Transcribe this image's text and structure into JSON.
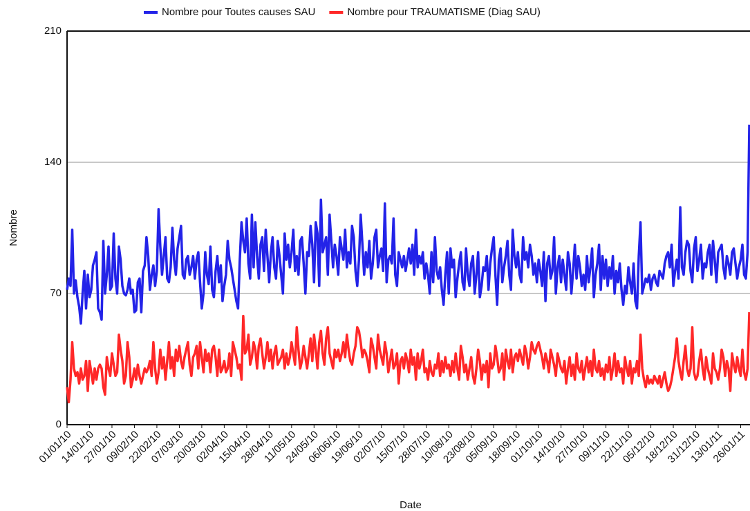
{
  "chart_data": {
    "type": "line",
    "xlabel": "Date",
    "ylabel": "Nombre",
    "legend": "top",
    "grid": true,
    "ylim": [
      0,
      210
    ],
    "yticks": [
      0,
      70,
      140,
      210
    ],
    "categories": [
      "01/01/10",
      null,
      null,
      null,
      null,
      null,
      null,
      null,
      null,
      null,
      null,
      null,
      null,
      "14/01/10",
      null,
      null,
      null,
      null,
      null,
      null,
      null,
      null,
      null,
      null,
      null,
      null,
      "27/01/10",
      null,
      null,
      null,
      null,
      null,
      null,
      null,
      null,
      null,
      null,
      null,
      null,
      "09/02/10",
      null,
      null,
      null,
      null,
      null,
      null,
      null,
      null,
      null,
      null,
      null,
      null,
      "22/02/10",
      null,
      null,
      null,
      null,
      null,
      null,
      null,
      null,
      null,
      null,
      null,
      null,
      "07/03/10",
      null,
      null,
      null,
      null,
      null,
      null,
      null,
      null,
      null,
      null,
      null,
      null,
      "20/03/10",
      null,
      null,
      null,
      null,
      null,
      null,
      null,
      null,
      null,
      null,
      null,
      null,
      "02/04/10",
      null,
      null,
      null,
      null,
      null,
      null,
      null,
      null,
      null,
      null,
      null,
      null,
      "15/04/10",
      null,
      null,
      null,
      null,
      null,
      null,
      null,
      null,
      null,
      null,
      null,
      null,
      "28/04/10",
      null,
      null,
      null,
      null,
      null,
      null,
      null,
      null,
      null,
      null,
      null,
      null,
      "11/05/10",
      null,
      null,
      null,
      null,
      null,
      null,
      null,
      null,
      null,
      null,
      null,
      null,
      "24/05/10",
      null,
      null,
      null,
      null,
      null,
      null,
      null,
      null,
      null,
      null,
      null,
      null,
      "06/06/10",
      null,
      null,
      null,
      null,
      null,
      null,
      null,
      null,
      null,
      null,
      null,
      null,
      "19/06/10",
      null,
      null,
      null,
      null,
      null,
      null,
      null,
      null,
      null,
      null,
      null,
      null,
      "02/07/10",
      null,
      null,
      null,
      null,
      null,
      null,
      null,
      null,
      null,
      null,
      null,
      null,
      "15/07/10",
      null,
      null,
      null,
      null,
      null,
      null,
      null,
      null,
      null,
      null,
      null,
      null,
      "28/07/10",
      null,
      null,
      null,
      null,
      null,
      null,
      null,
      null,
      null,
      null,
      null,
      null,
      "10/08/10",
      null,
      null,
      null,
      null,
      null,
      null,
      null,
      null,
      null,
      null,
      null,
      null,
      "23/08/10",
      null,
      null,
      null,
      null,
      null,
      null,
      null,
      null,
      null,
      null,
      null,
      null,
      "05/09/10",
      null,
      null,
      null,
      null,
      null,
      null,
      null,
      null,
      null,
      null,
      null,
      null,
      "18/09/10",
      null,
      null,
      null,
      null,
      null,
      null,
      null,
      null,
      null,
      null,
      null,
      null,
      "01/10/10",
      null,
      null,
      null,
      null,
      null,
      null,
      null,
      null,
      null,
      null,
      null,
      null,
      "14/10/10",
      null,
      null,
      null,
      null,
      null,
      null,
      null,
      null,
      null,
      null,
      null,
      null,
      "27/10/10",
      null,
      null,
      null,
      null,
      null,
      null,
      null,
      null,
      null,
      null,
      null,
      null,
      "09/11/10",
      null,
      null,
      null,
      null,
      null,
      null,
      null,
      null,
      null,
      null,
      null,
      null,
      "22/11/10",
      null,
      null,
      null,
      null,
      null,
      null,
      null,
      null,
      null,
      null,
      null,
      null,
      "05/12/10",
      null,
      null,
      null,
      null,
      null,
      null,
      null,
      null,
      null,
      null,
      null,
      null,
      "18/12/10",
      null,
      null,
      null,
      null,
      null,
      null,
      null,
      null,
      null,
      null,
      null,
      null,
      "31/12/10",
      null,
      null,
      null,
      null,
      null,
      null,
      null,
      null,
      null,
      null,
      null,
      null,
      "13/01/11",
      null,
      null,
      null,
      null,
      null,
      null,
      null,
      null,
      null,
      null,
      null,
      null,
      "26/01/11",
      null,
      null,
      null,
      null,
      null
    ],
    "series": [
      {
        "name": "Nombre pour Toutes causes SAU",
        "color": "#2323e8",
        "values": [
          72,
          78,
          74,
          104,
          70,
          77,
          68,
          63,
          54,
          70,
          82,
          62,
          80,
          68,
          72,
          85,
          88,
          92,
          62,
          60,
          56,
          98,
          70,
          80,
          95,
          72,
          74,
          102,
          78,
          70,
          95,
          88,
          74,
          70,
          69,
          72,
          78,
          70,
          72,
          60,
          61,
          76,
          78,
          60,
          82,
          85,
          100,
          90,
          72,
          80,
          85,
          74,
          82,
          115,
          95,
          80,
          90,
          100,
          78,
          76,
          84,
          105,
          88,
          80,
          94,
          100,
          106,
          80,
          78,
          88,
          90,
          80,
          84,
          90,
          78,
          88,
          92,
          76,
          62,
          70,
          92,
          80,
          75,
          95,
          72,
          68,
          82,
          90,
          76,
          85,
          66,
          74,
          80,
          98,
          88,
          84,
          78,
          72,
          66,
          62,
          88,
          108,
          98,
          92,
          110,
          86,
          78,
          112,
          84,
          108,
          90,
          78,
          96,
          100,
          82,
          104,
          90,
          76,
          92,
          100,
          84,
          78,
          98,
          90,
          80,
          70,
          102,
          88,
          96,
          84,
          92,
          104,
          82,
          90,
          80,
          98,
          100,
          86,
          70,
          92,
          90,
          106,
          96,
          76,
          108,
          102,
          74,
          120,
          92,
          96,
          100,
          80,
          112,
          98,
          84,
          96,
          90,
          80,
          100,
          94,
          88,
          104,
          84,
          92,
          86,
          106,
          100,
          82,
          74,
          88,
          112,
          96,
          80,
          92,
          84,
          98,
          78,
          86,
          100,
          104,
          84,
          90,
          94,
          82,
          118,
          76,
          88,
          90,
          86,
          110,
          80,
          74,
          92,
          88,
          84,
          90,
          82,
          88,
          94,
          86,
          96,
          80,
          104,
          84,
          90,
          86,
          92,
          78,
          86,
          80,
          70,
          92,
          76,
          100,
          82,
          78,
          84,
          72,
          64,
          80,
          92,
          70,
          94,
          84,
          88,
          68,
          78,
          86,
          92,
          76,
          72,
          94,
          80,
          74,
          86,
          90,
          70,
          80,
          92,
          68,
          74,
          84,
          82,
          90,
          72,
          86,
          94,
          100,
          80,
          64,
          88,
          94,
          76,
          84,
          90,
          98,
          80,
          72,
          104,
          90,
          84,
          92,
          80,
          76,
          100,
          88,
          92,
          84,
          96,
          90,
          80,
          86,
          76,
          88,
          82,
          74,
          92,
          66,
          86,
          90,
          78,
          82,
          100,
          70,
          84,
          90,
          76,
          88,
          80,
          72,
          92,
          86,
          70,
          82,
          96,
          78,
          90,
          84,
          74,
          80,
          72,
          90,
          76,
          84,
          94,
          68,
          80,
          86,
          96,
          72,
          90,
          78,
          88,
          74,
          84,
          78,
          90,
          70,
          82,
          76,
          86,
          72,
          64,
          74,
          70,
          84,
          76,
          70,
          86,
          66,
          62,
          90,
          108,
          70,
          74,
          78,
          76,
          80,
          72,
          78,
          80,
          76,
          74,
          82,
          80,
          78,
          86,
          90,
          92,
          84,
          96,
          74,
          82,
          88,
          78,
          116,
          84,
          80,
          92,
          98,
          96,
          82,
          76,
          94,
          100,
          82,
          88,
          96,
          78,
          86,
          84,
          92,
          96,
          80,
          98,
          88,
          76,
          92,
          94,
          96,
          84,
          78,
          90,
          86,
          80,
          92,
          94,
          86,
          78,
          84,
          88,
          96,
          80,
          78,
          92,
          160
        ]
      },
      {
        "name": "Nombre pour TRAUMATISME (Diag SAU)",
        "color": "#ff2828",
        "values": [
          20,
          12,
          24,
          44,
          30,
          26,
          28,
          22,
          30,
          24,
          26,
          34,
          18,
          34,
          28,
          22,
          30,
          24,
          30,
          32,
          30,
          20,
          16,
          36,
          30,
          26,
          38,
          32,
          26,
          28,
          48,
          40,
          34,
          22,
          26,
          44,
          36,
          20,
          24,
          30,
          24,
          32,
          26,
          22,
          26,
          30,
          28,
          30,
          34,
          26,
          44,
          30,
          22,
          28,
          40,
          30,
          36,
          24,
          34,
          44,
          30,
          36,
          26,
          40,
          34,
          42,
          34,
          30,
          36,
          40,
          44,
          32,
          26,
          36,
          38,
          42,
          30,
          44,
          36,
          28,
          40,
          34,
          38,
          28,
          40,
          42,
          36,
          26,
          40,
          28,
          30,
          34,
          28,
          30,
          38,
          26,
          44,
          40,
          36,
          30,
          32,
          24,
          58,
          38,
          40,
          48,
          32,
          36,
          44,
          40,
          30,
          42,
          46,
          38,
          30,
          36,
          44,
          34,
          40,
          30,
          38,
          42,
          32,
          34,
          36,
          40,
          30,
          38,
          32,
          36,
          44,
          38,
          32,
          52,
          40,
          30,
          34,
          42,
          36,
          30,
          38,
          46,
          34,
          48,
          40,
          30,
          44,
          50,
          38,
          32,
          46,
          52,
          38,
          34,
          30,
          40,
          36,
          40,
          34,
          38,
          44,
          36,
          48,
          40,
          34,
          32,
          38,
          42,
          52,
          50,
          44,
          36,
          40,
          38,
          34,
          28,
          46,
          42,
          36,
          30,
          48,
          40,
          36,
          32,
          44,
          38,
          28,
          34,
          40,
          30,
          32,
          38,
          22,
          34,
          36,
          30,
          38,
          34,
          28,
          40,
          32,
          36,
          24,
          38,
          30,
          34,
          40,
          28,
          30,
          24,
          34,
          28,
          26,
          32,
          30,
          38,
          26,
          34,
          28,
          36,
          30,
          32,
          26,
          34,
          28,
          38,
          30,
          24,
          42,
          36,
          28,
          32,
          24,
          30,
          36,
          26,
          22,
          30,
          40,
          34,
          24,
          32,
          28,
          34,
          20,
          38,
          30,
          32,
          42,
          36,
          28,
          30,
          38,
          24,
          40,
          34,
          30,
          40,
          28,
          36,
          38,
          34,
          40,
          36,
          32,
          42,
          38,
          30,
          36,
          44,
          40,
          38,
          42,
          44,
          40,
          36,
          30,
          38,
          34,
          28,
          40,
          36,
          32,
          26,
          38,
          34,
          30,
          28,
          34,
          22,
          30,
          36,
          26,
          32,
          24,
          38,
          30,
          28,
          34,
          24,
          30,
          36,
          28,
          34,
          26,
          40,
          30,
          28,
          34,
          26,
          30,
          24,
          32,
          28,
          36,
          24,
          30,
          38,
          26,
          34,
          28,
          30,
          22,
          36,
          30,
          26,
          34,
          22,
          30,
          28,
          34,
          26,
          48,
          30,
          24,
          20,
          26,
          22,
          24,
          22,
          26,
          24,
          22,
          26,
          20,
          24,
          28,
          22,
          18,
          20,
          24,
          30,
          36,
          46,
          34,
          28,
          24,
          34,
          42,
          30,
          26,
          30,
          52,
          28,
          24,
          26,
          34,
          40,
          30,
          24,
          36,
          30,
          26,
          22,
          38,
          30,
          28,
          24,
          30,
          40,
          36,
          26,
          34,
          30,
          18,
          38,
          32,
          28,
          36,
          30,
          26,
          40,
          28,
          24,
          30,
          60
        ]
      }
    ]
  }
}
